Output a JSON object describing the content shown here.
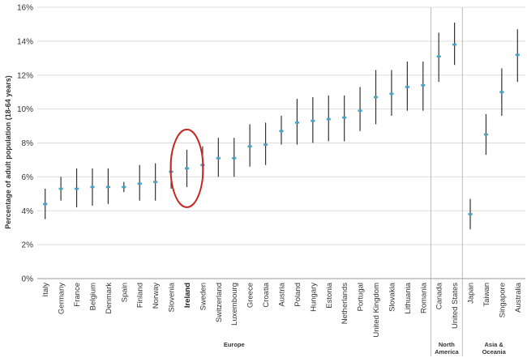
{
  "chart_data": {
    "type": "errorbar",
    "ylabel": "Percentage of adult population (18-64 years)",
    "ylim": [
      0,
      16
    ],
    "yticks": [
      "0%",
      "2%",
      "4%",
      "6%",
      "8%",
      "10%",
      "12%",
      "14%",
      "16%"
    ],
    "grid": true,
    "highlight": "Ireland",
    "colors": {
      "point": "#4aa3c8",
      "whisker": "#333333",
      "highlight_ring": "#c62828",
      "grid": "#dddddd"
    },
    "groups": [
      {
        "name": "Europe",
        "categories": [
          "Italy",
          "Germany",
          "France",
          "Belgium",
          "Denmark",
          "Spain",
          "Finland",
          "Norway",
          "Slovenia",
          "Ireland",
          "Sweden",
          "Switzerland",
          "Luxembourg",
          "Greece",
          "Croatia",
          "Austria",
          "Poland",
          "Hungary",
          "Estonia",
          "Netherlands",
          "Portugal",
          "United Kingdom",
          "Slovakia",
          "Lithuania",
          "Romania"
        ]
      },
      {
        "name": "North America",
        "categories": [
          "Canada",
          "United States"
        ]
      },
      {
        "name": "Asia & Oceania",
        "categories": [
          "Japan",
          "Taiwan",
          "Singapore",
          "Australia"
        ]
      }
    ],
    "categories": [
      "Italy",
      "Germany",
      "France",
      "Belgium",
      "Denmark",
      "Spain",
      "Finland",
      "Norway",
      "Slovenia",
      "Ireland",
      "Sweden",
      "Switzerland",
      "Luxembourg",
      "Greece",
      "Croatia",
      "Austria",
      "Poland",
      "Hungary",
      "Estonia",
      "Netherlands",
      "Portugal",
      "United Kingdom",
      "Slovakia",
      "Lithuania",
      "Romania",
      "Canada",
      "United States",
      "Japan",
      "Taiwan",
      "Singapore",
      "Australia"
    ],
    "values": [
      4.4,
      5.3,
      5.3,
      5.4,
      5.4,
      5.4,
      5.6,
      5.7,
      6.3,
      6.5,
      6.7,
      7.1,
      7.1,
      7.8,
      7.9,
      8.7,
      9.2,
      9.3,
      9.4,
      9.5,
      9.9,
      10.7,
      10.9,
      11.3,
      11.4,
      13.1,
      13.8,
      3.8,
      8.5,
      11.0,
      13.2
    ],
    "lower": [
      3.5,
      4.6,
      4.2,
      4.3,
      4.4,
      5.1,
      4.6,
      4.6,
      5.3,
      5.4,
      5.7,
      6.0,
      6.0,
      6.6,
      6.7,
      7.9,
      7.9,
      8.0,
      8.1,
      8.1,
      8.7,
      9.1,
      9.6,
      9.9,
      9.9,
      11.6,
      12.6,
      2.9,
      7.3,
      9.6,
      11.6
    ],
    "upper": [
      5.3,
      6.0,
      6.5,
      6.5,
      6.5,
      5.7,
      6.7,
      6.8,
      7.3,
      7.6,
      7.8,
      8.3,
      8.3,
      9.1,
      9.2,
      9.6,
      10.6,
      10.7,
      10.8,
      10.8,
      11.3,
      12.3,
      12.3,
      12.8,
      12.8,
      14.5,
      15.1,
      4.7,
      9.7,
      12.4,
      14.7
    ]
  }
}
